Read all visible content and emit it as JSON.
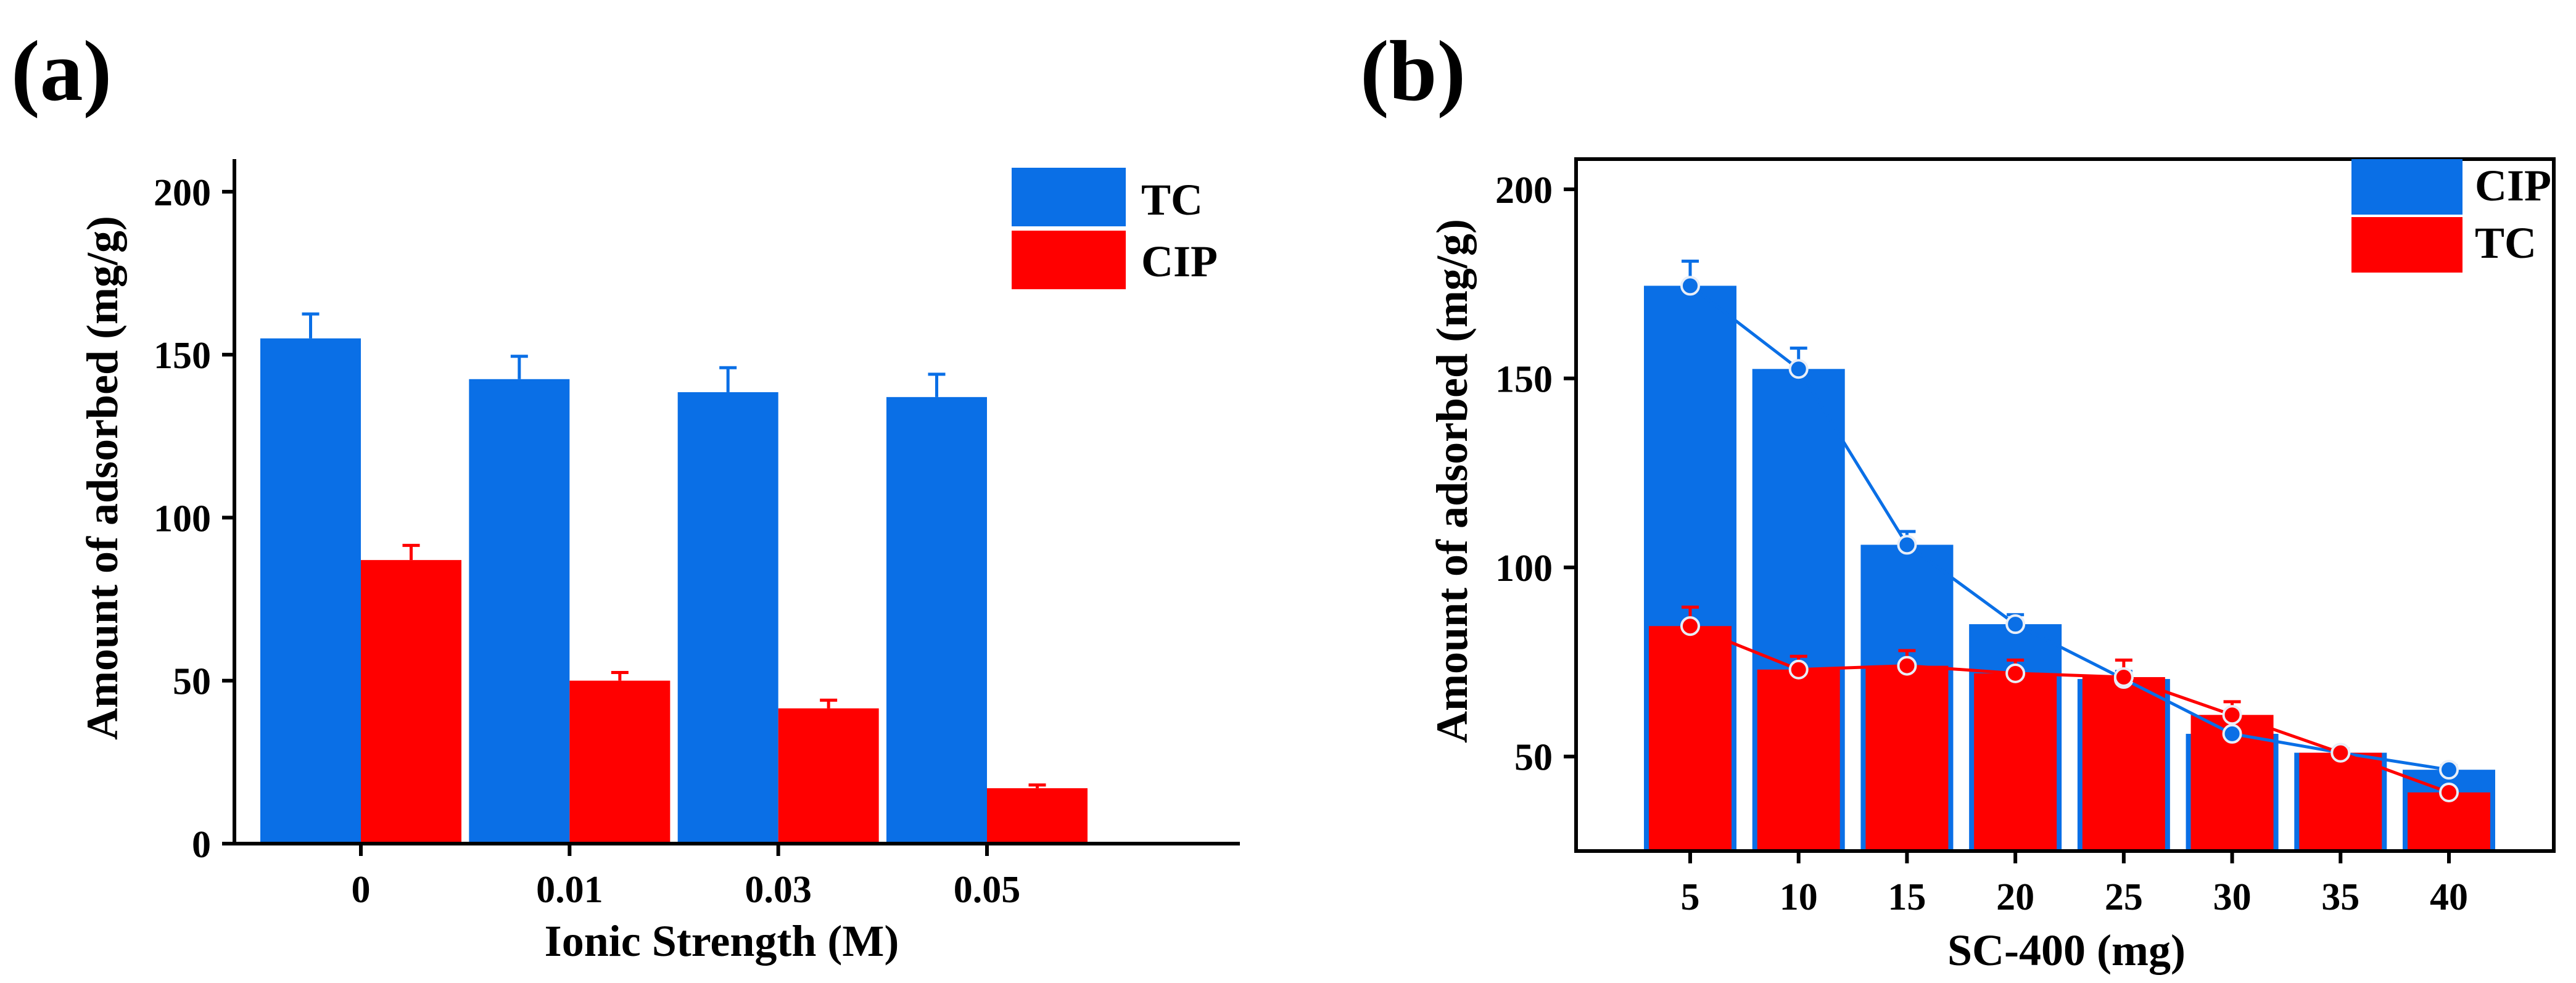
{
  "panels": [
    {
      "panel_label": "(a)",
      "chart_data": {
        "type": "bar",
        "categories": [
          "0",
          "0.01",
          "0.03",
          "0.05"
        ],
        "series": [
          {
            "name": "TC",
            "color": "#0a6fe6",
            "values": [
              155,
              142.5,
              138.5,
              137
            ],
            "errors": [
              7.5,
              7,
              7.5,
              7
            ]
          },
          {
            "name": "CIP",
            "color": "#ff0000",
            "values": [
              87,
              50,
              41.5,
              17
            ],
            "errors": [
              4.5,
              2.5,
              2.5,
              1
            ]
          }
        ],
        "title": "",
        "xlabel": "Ionic Strength (M)",
        "ylabel": "Amount of adsorbed (mg/g)",
        "ylim": [
          0,
          210
        ],
        "yticks": [
          "0",
          "50",
          "100",
          "150",
          "200"
        ],
        "legend_position": "top-right"
      }
    },
    {
      "panel_label": "(b)",
      "chart_data": {
        "type": "bar",
        "categories": [
          "5",
          "10",
          "15",
          "20",
          "25",
          "30",
          "35",
          "40"
        ],
        "series": [
          {
            "name": "CIP",
            "color": "#0a6fe6",
            "values": [
              174.5,
              152.5,
              106,
              85,
              70.5,
              56,
              51,
              46.5
            ],
            "errors": [
              6.5,
              5.5,
              3.5,
              2.5,
              2,
              1.5,
              1,
              1
            ],
            "line": true
          },
          {
            "name": "TC",
            "color": "#ff0000",
            "values": [
              84.5,
              73,
              74,
              72,
              71,
              61,
              51,
              40.5
            ],
            "errors": [
              5,
              3.5,
              4,
              3.5,
              4.5,
              3.5,
              1,
              1
            ],
            "line": true
          }
        ],
        "title": "",
        "xlabel": "SC-400 (mg)",
        "ylabel": "Amount of adsorbed (mg/g)",
        "ylim": [
          25,
          208
        ],
        "yticks": [
          "50",
          "100",
          "150",
          "200"
        ],
        "legend_position": "top-right"
      }
    }
  ]
}
